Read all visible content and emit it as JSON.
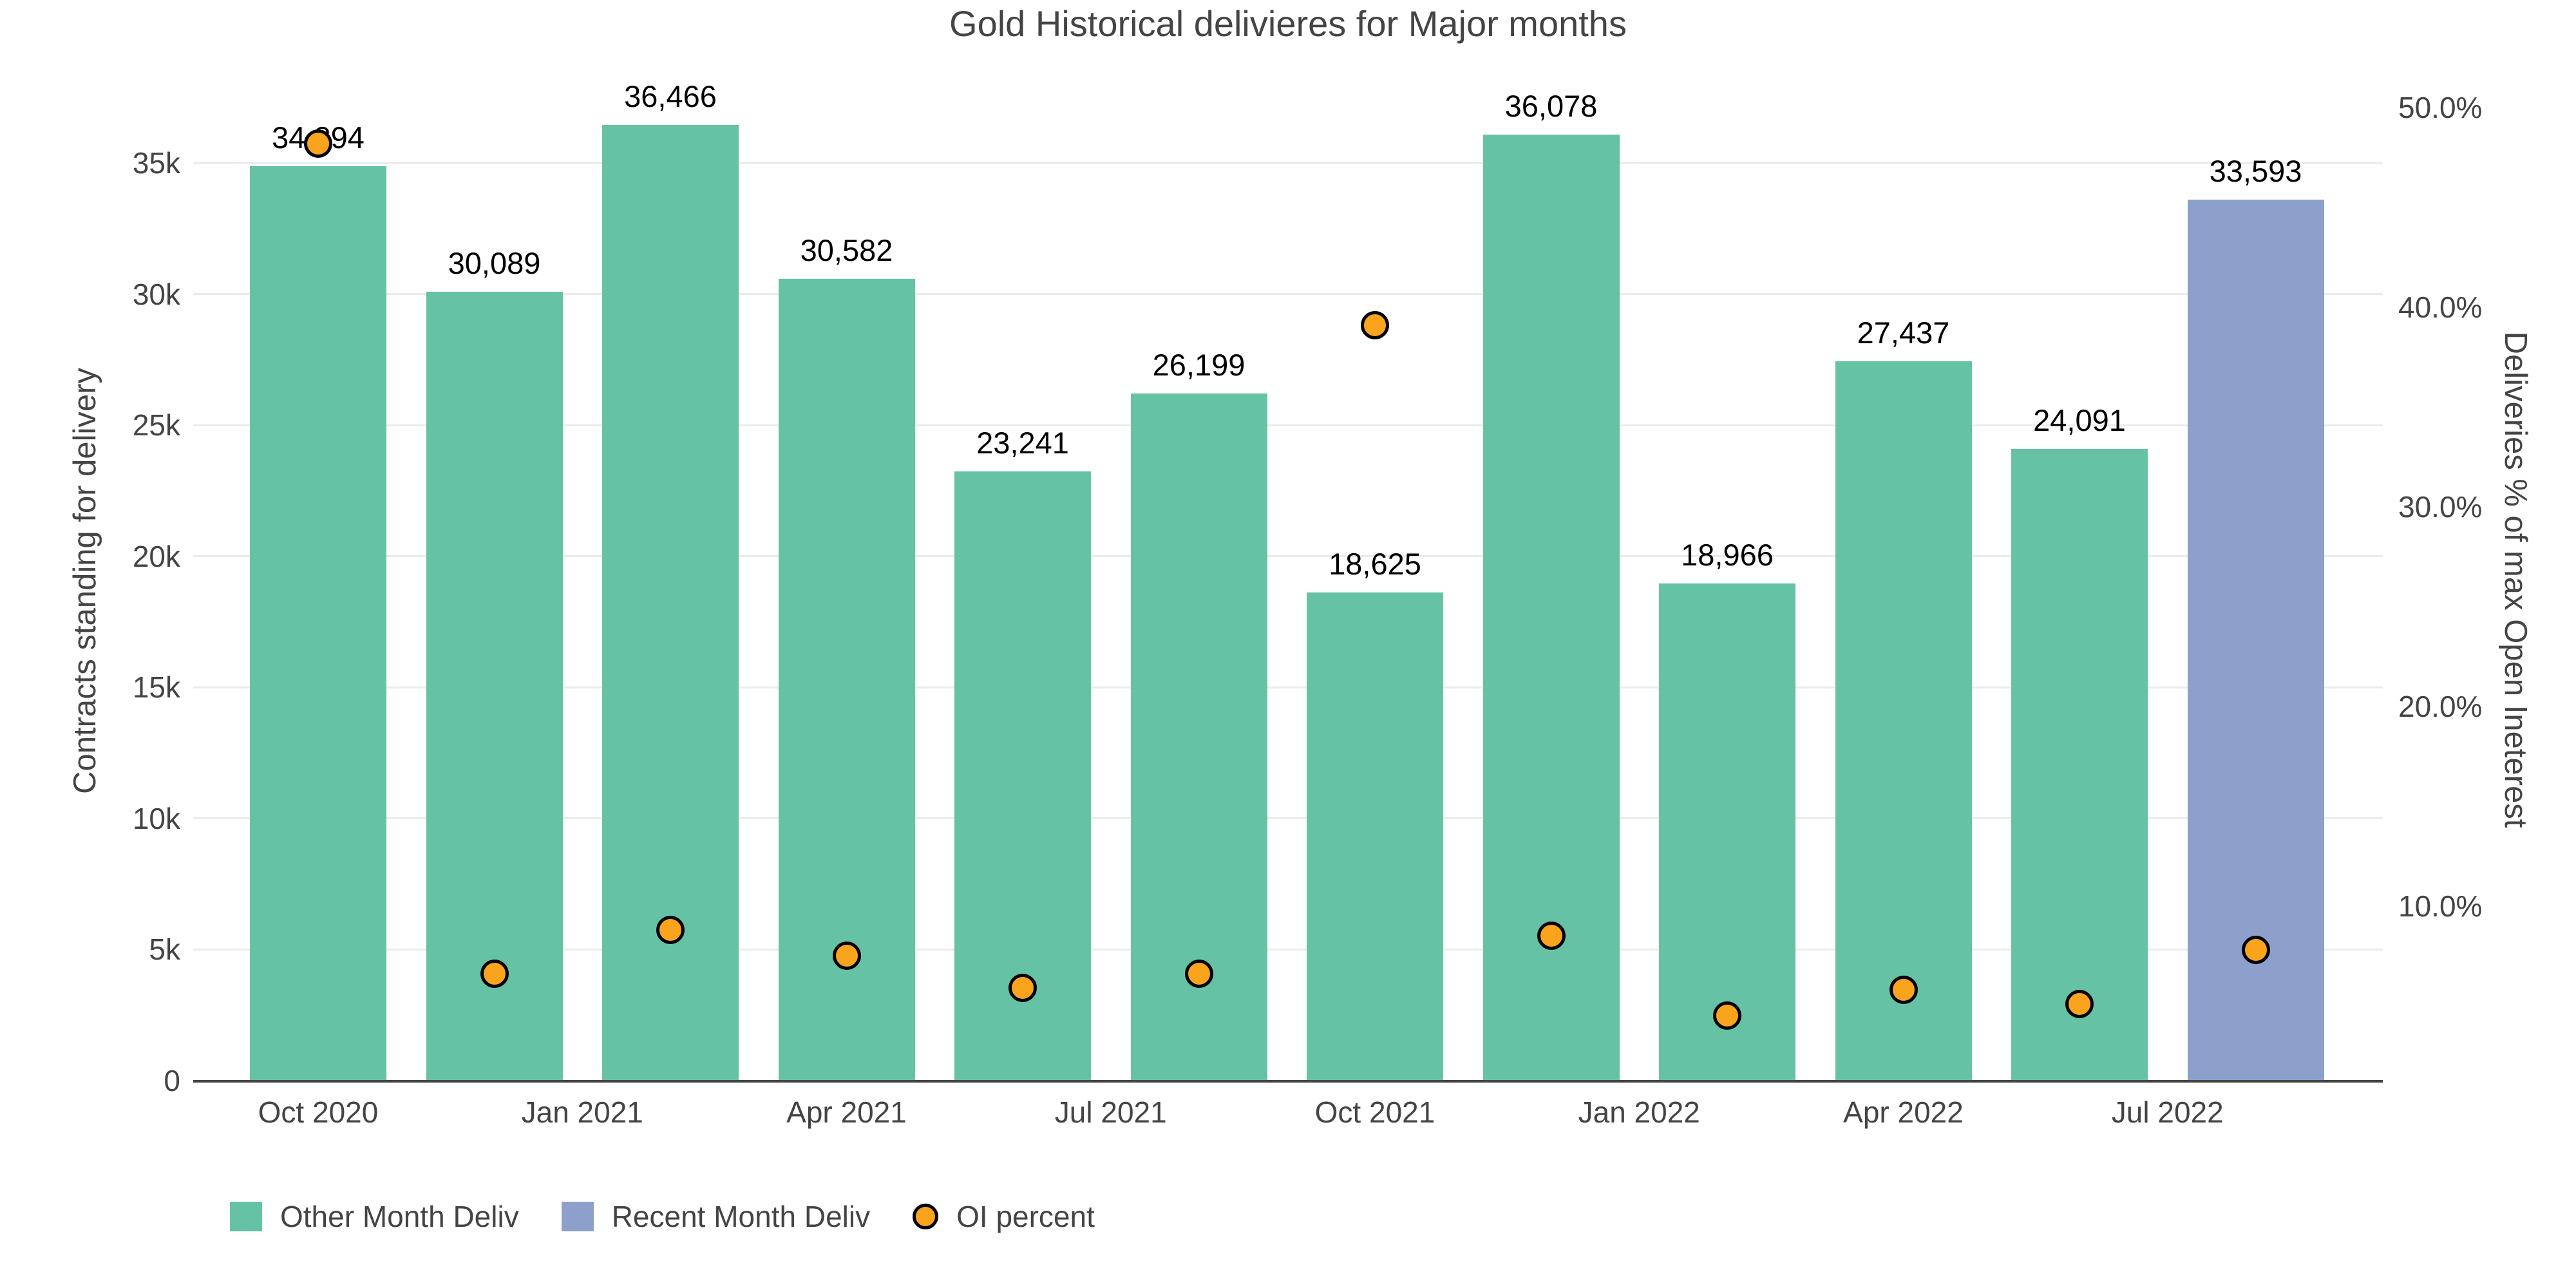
{
  "chart_data": {
    "type": "bar",
    "title": "Gold Historical delivieres for Major months",
    "series": [
      {
        "name": "Other Month Deliv",
        "type": "bar",
        "axis": "left",
        "color": "#66c2a5",
        "values": [
          34894,
          30089,
          36466,
          30582,
          23241,
          26199,
          18625,
          36078,
          18966,
          27437,
          24091,
          null
        ]
      },
      {
        "name": "Recent Month Deliv",
        "type": "bar",
        "axis": "left",
        "color": "#8da0cb",
        "values": [
          null,
          null,
          null,
          null,
          null,
          null,
          null,
          null,
          null,
          null,
          null,
          33593
        ]
      },
      {
        "name": "OI percent",
        "type": "scatter",
        "axis": "right",
        "color": "#faa41e",
        "marker_outline": "#000000",
        "values": [
          48.2,
          6.6,
          8.8,
          7.5,
          5.9,
          6.6,
          39.1,
          8.5,
          4.5,
          5.8,
          5.1,
          7.8
        ]
      }
    ],
    "bar_value_labels": [
      "34,894",
      "30,089",
      "36,466",
      "30,582",
      "23,241",
      "26,199",
      "18,625",
      "36,078",
      "18,966",
      "27,437",
      "24,091",
      "33,593"
    ],
    "x_ticks": [
      {
        "label": "Oct 2020",
        "pos": 0
      },
      {
        "label": "Jan 2021",
        "pos": 1.5
      },
      {
        "label": "Apr 2021",
        "pos": 3
      },
      {
        "label": "Jul 2021",
        "pos": 4.5
      },
      {
        "label": "Oct 2021",
        "pos": 6
      },
      {
        "label": "Jan 2022",
        "pos": 7.5
      },
      {
        "label": "Apr 2022",
        "pos": 9
      },
      {
        "label": "Jul 2022",
        "pos": 10.5
      }
    ],
    "left_axis": {
      "title": "Contracts standing for delivery",
      "tick_labels": [
        "0",
        "5k",
        "10k",
        "15k",
        "20k",
        "25k",
        "30k",
        "35k"
      ],
      "tick_values": [
        0,
        5000,
        10000,
        15000,
        20000,
        25000,
        30000,
        35000
      ],
      "range": [
        0,
        38100
      ]
    },
    "right_axis": {
      "title": "Deliveries % of max Open Ineterest",
      "tick_labels": [
        "10.0%",
        "20.0%",
        "30.0%",
        "40.0%",
        "50.0%"
      ],
      "tick_values": [
        10,
        20,
        30,
        40,
        50
      ],
      "range": [
        1.25,
        51.3
      ]
    },
    "gridlines": {
      "color": "#ebebeb",
      "values": [
        5000,
        10000,
        15000,
        20000,
        25000,
        30000,
        35000
      ]
    },
    "legend": [
      {
        "label": "Other Month Deliv",
        "shape": "square",
        "color": "#66c2a5"
      },
      {
        "label": "Recent Month Deliv",
        "shape": "square",
        "color": "#8da0cb"
      },
      {
        "label": "OI percent",
        "shape": "circle",
        "color": "#faa41e"
      }
    ],
    "colors": {
      "axis_text": "#444444",
      "data_label": "#000000",
      "axis_line": "#444444",
      "grid": "#ebebeb",
      "background": "#ffffff"
    }
  }
}
